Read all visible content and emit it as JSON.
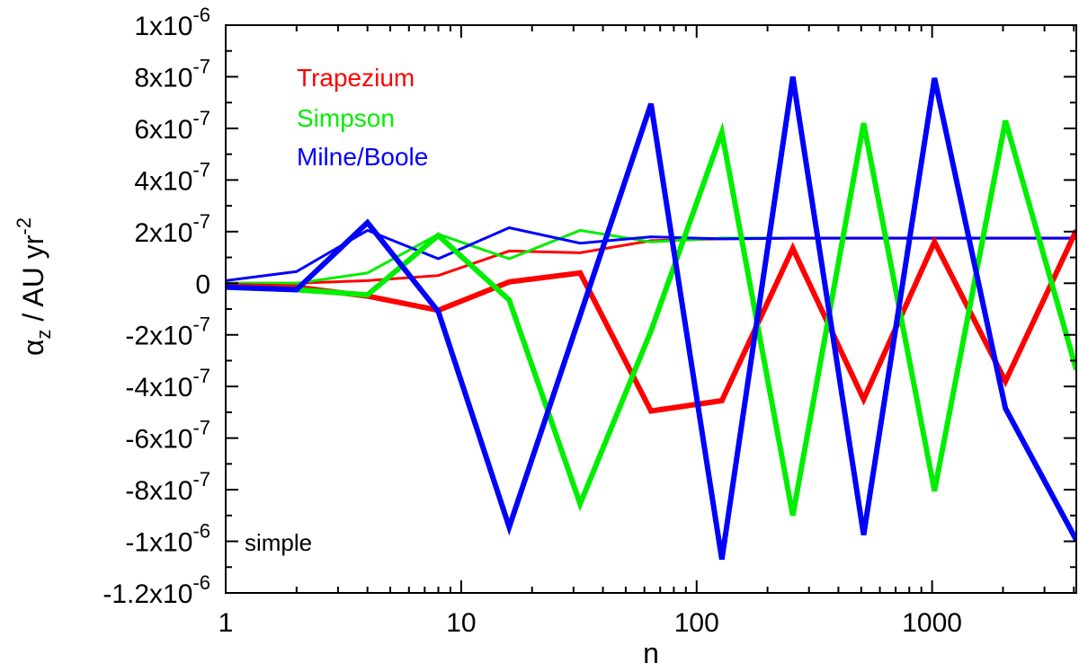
{
  "chart_data": {
    "type": "line",
    "x_scale": "log",
    "x": [
      1,
      2,
      4,
      8,
      16,
      32,
      64,
      128,
      256,
      512,
      1024,
      2048,
      4096
    ],
    "xlim": [
      1,
      4096
    ],
    "ylim": [
      -1.2e-06,
      1e-06
    ],
    "x_ticks": [
      {
        "value": 1,
        "label": "1"
      },
      {
        "value": 10,
        "label": "10"
      },
      {
        "value": 100,
        "label": "100"
      },
      {
        "value": 1000,
        "label": "1000"
      }
    ],
    "y_ticks": [
      {
        "value": 1e-06,
        "mant": "1x10",
        "exp": "-6"
      },
      {
        "value": 8e-07,
        "mant": "8x10",
        "exp": "-7"
      },
      {
        "value": 6e-07,
        "mant": "6x10",
        "exp": "-7"
      },
      {
        "value": 4e-07,
        "mant": "4x10",
        "exp": "-7"
      },
      {
        "value": 2e-07,
        "mant": "2x10",
        "exp": "-7"
      },
      {
        "value": 0,
        "mant": "0",
        "exp": ""
      },
      {
        "value": -2e-07,
        "mant": "-2x10",
        "exp": "-7"
      },
      {
        "value": -4e-07,
        "mant": "-4x10",
        "exp": "-7"
      },
      {
        "value": -6e-07,
        "mant": "-6x10",
        "exp": "-7"
      },
      {
        "value": -8e-07,
        "mant": "-8x10",
        "exp": "-7"
      },
      {
        "value": -1e-06,
        "mant": "-1x10",
        "exp": "-6"
      },
      {
        "value": -1.2e-06,
        "mant": "-1.2x10",
        "exp": "-6"
      }
    ],
    "xlabel": "n",
    "ylabel": {
      "symbol": "α",
      "sub": "z",
      "units": " / AU yr",
      "exp": "-2"
    },
    "annotation": "simple",
    "legend_position": "top-left",
    "series": [
      {
        "name": "Trapezium",
        "color": "#ff0000",
        "weight": "thin",
        "values": [
          0.0,
          0.0,
          1e-08,
          3e-08,
          1.25e-07,
          1.18e-07,
          1.65e-07,
          1.72e-07,
          1.74e-07,
          1.74e-07,
          1.74e-07,
          1.74e-07,
          1.74e-07
        ]
      },
      {
        "name": "Simpson",
        "color": "#00ee00",
        "weight": "thin",
        "values": [
          0.0,
          0.0,
          4e-08,
          1.9e-07,
          9.5e-08,
          2.05e-07,
          1.6e-07,
          1.75e-07,
          1.75e-07,
          1.75e-07,
          1.75e-07,
          1.75e-07,
          1.75e-07
        ]
      },
      {
        "name": "Milne/Boole",
        "color": "#0000ff",
        "weight": "thin",
        "values": [
          1e-08,
          4.5e-08,
          2.05e-07,
          9.5e-08,
          2.15e-07,
          1.55e-07,
          1.8e-07,
          1.72e-07,
          1.75e-07,
          1.75e-07,
          1.75e-07,
          1.75e-07,
          1.75e-07
        ]
      },
      {
        "name": "Trapezium",
        "color": "#ff0000",
        "weight": "thick",
        "values": [
          -1e-08,
          -1.5e-08,
          -5e-08,
          -1.05e-07,
          5e-09,
          4e-08,
          -4.95e-07,
          -4.55e-07,
          1.35e-07,
          -4.5e-07,
          1.6e-07,
          -3.8e-07,
          2.05e-07
        ]
      },
      {
        "name": "Simpson",
        "color": "#00ee00",
        "weight": "thick",
        "values": [
          -1.5e-08,
          -2.5e-08,
          -4.5e-08,
          1.85e-07,
          -6.5e-08,
          -8.55e-07,
          -1.85e-07,
          5.85e-07,
          -9e-07,
          6.2e-07,
          -8.05e-07,
          6.3e-07,
          -3.35e-07
        ]
      },
      {
        "name": "Milne/Boole",
        "color": "#0000ff",
        "weight": "thick",
        "values": [
          -1.5e-08,
          -2.5e-08,
          2.35e-07,
          -1.1e-07,
          -9.45e-07,
          null,
          6.95e-07,
          -1.07e-06,
          8e-07,
          -9.75e-07,
          7.95e-07,
          -4.85e-07,
          -9.95e-07
        ]
      }
    ],
    "legend": [
      {
        "label": "Trapezium",
        "color": "#ff0000"
      },
      {
        "label": "Simpson",
        "color": "#00ee00"
      },
      {
        "label": "Milne/Boole",
        "color": "#0000ff"
      }
    ]
  }
}
